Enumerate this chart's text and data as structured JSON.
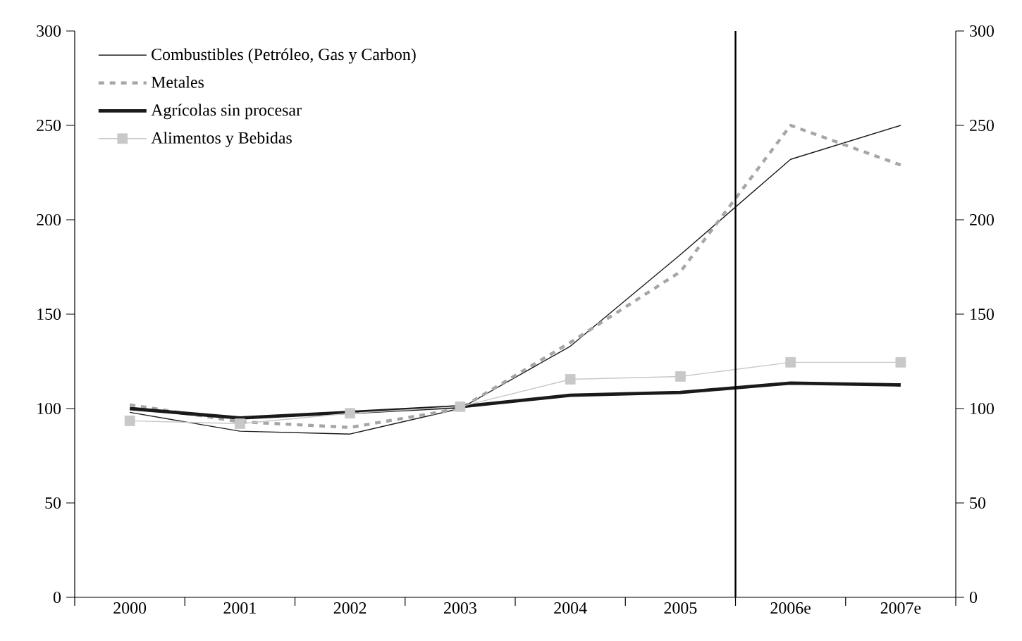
{
  "chart_data": {
    "type": "line",
    "categories": [
      "2000",
      "2001",
      "2002",
      "2003",
      "2004",
      "2005",
      "2006e",
      "2007e"
    ],
    "series": [
      {
        "name": "Combustibles (Petróleo, Gas y Carbon)",
        "color": "#1a1a1a",
        "line_style": "solid",
        "values": [
          98,
          88,
          86.5,
          100,
          133,
          181.5,
          232,
          250
        ]
      },
      {
        "name": "Metales",
        "color": "#a6a6a8",
        "line_style": "dashed",
        "values": [
          102,
          93,
          90,
          100,
          135,
          172.5,
          250,
          229
        ]
      },
      {
        "name": "Agrícolas sin procesar",
        "color": "#1a1a1a",
        "line_style": "solid",
        "values": [
          100,
          95,
          98,
          101,
          107,
          108.5,
          113.5,
          112.5
        ]
      },
      {
        "name": "Alimentos y Bebidas",
        "color": "#c8c8c8",
        "line_style": "solid",
        "marker": "square",
        "values": [
          93.5,
          92,
          97.5,
          101,
          115.5,
          117,
          124.5,
          124.5
        ]
      }
    ],
    "ylim": [
      0,
      300
    ],
    "yticks": [
      0,
      50,
      100,
      150,
      200,
      250,
      300
    ],
    "y2lim": [
      0,
      300
    ],
    "y2ticks": [
      0,
      50,
      100,
      150,
      200,
      250,
      300
    ],
    "legend": "top left",
    "grid": false
  }
}
